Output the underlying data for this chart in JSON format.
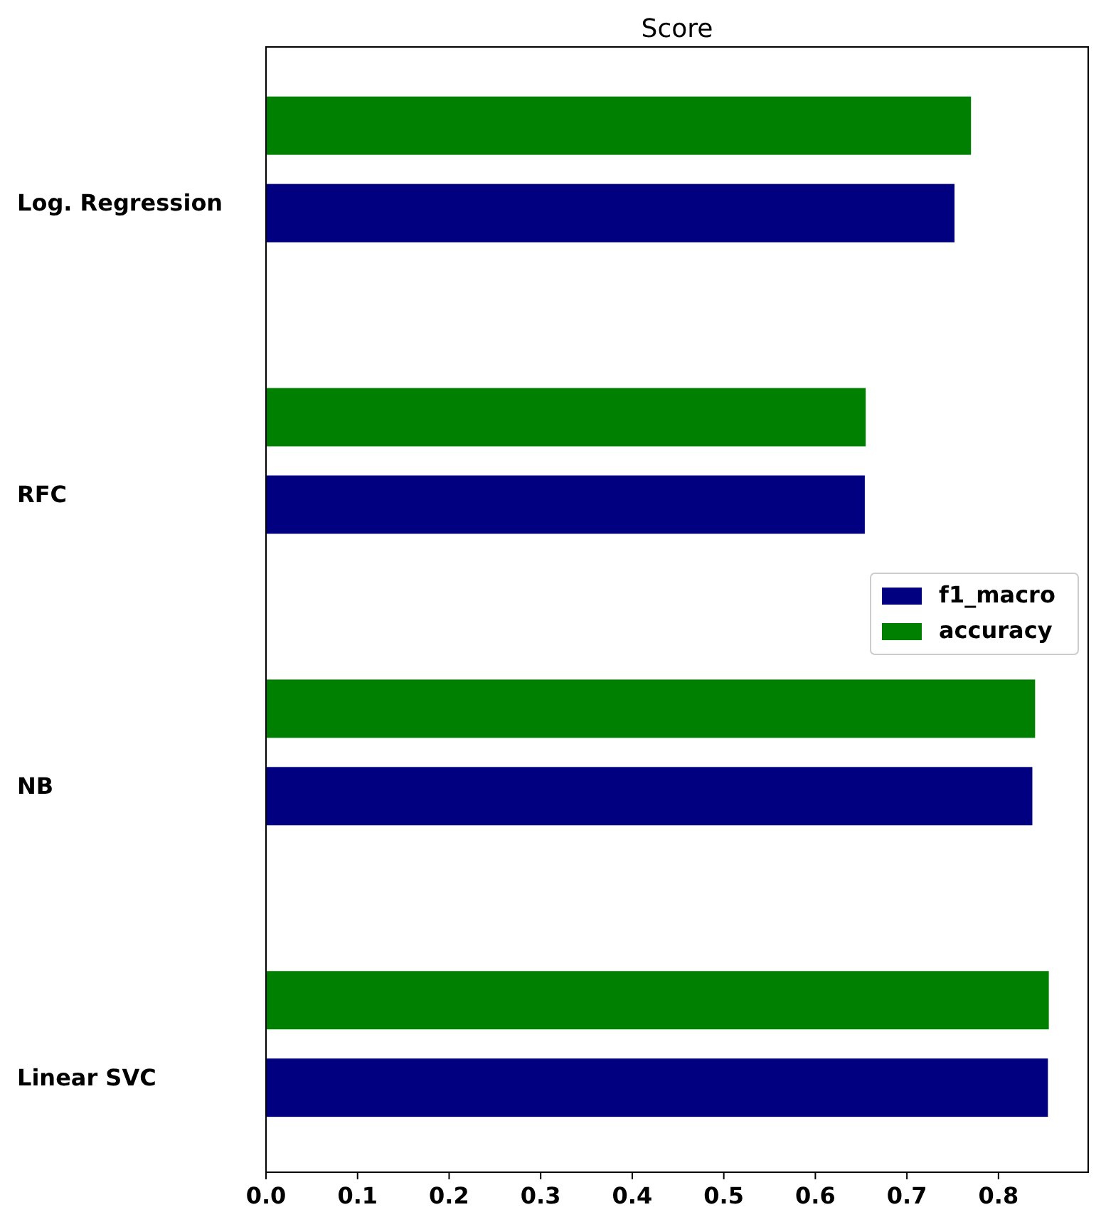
{
  "chart_data": {
    "type": "bar",
    "orientation": "horizontal",
    "title": "Score",
    "categories": [
      "Log. Regression",
      "RFC",
      "NB",
      "Linear SVC"
    ],
    "series": [
      {
        "name": "f1_macro",
        "color": "#000080",
        "values": [
          0.752,
          0.654,
          0.837,
          0.854
        ]
      },
      {
        "name": "accuracy",
        "color": "#008000",
        "values": [
          0.77,
          0.655,
          0.84,
          0.855
        ]
      }
    ],
    "xlim": [
      0,
      0.898
    ],
    "xticks": [
      {
        "value": 0,
        "label": "0.0"
      },
      0.1,
      0.2,
      0.3,
      0.4,
      0.5,
      0.6,
      0.7,
      0.8
    ],
    "legend": "right",
    "grid": false
  }
}
